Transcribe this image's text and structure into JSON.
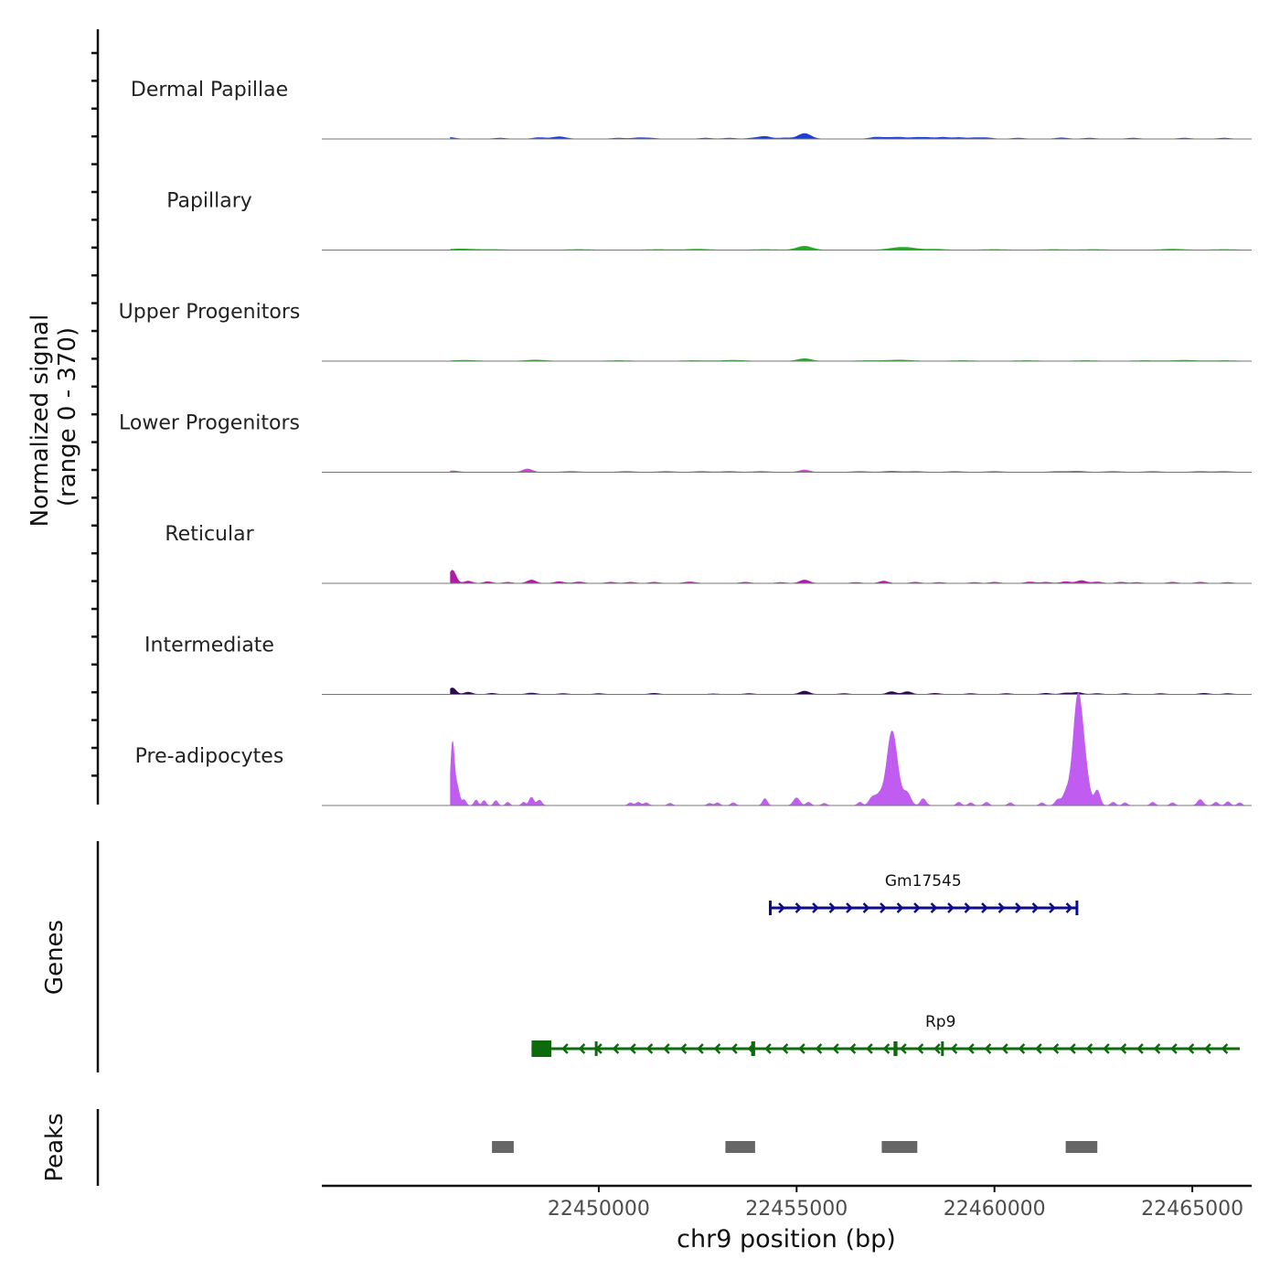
{
  "chart_data": {
    "type": "area",
    "chromosome": "chr9",
    "x_range": [
      22443000,
      22466500
    ],
    "x_ticks": [
      22450000,
      22455000,
      22460000,
      22465000
    ],
    "x_tick_labels": [
      "22450000",
      "22455000",
      "22460000",
      "22465000"
    ],
    "xlabel": "chr9 position (bp)",
    "ylabel_line1": "Normalized signal",
    "ylabel_line2": "(range 0 - 370)",
    "y_range": [
      0,
      370
    ],
    "tracks": [
      {
        "name": "Dermal Papillae",
        "color": "#1f3fcf",
        "peaks": [
          [
            22446200,
            6,
            150
          ],
          [
            22447500,
            3,
            150
          ],
          [
            22448500,
            5,
            150
          ],
          [
            22449000,
            8,
            170
          ],
          [
            22450500,
            3,
            170
          ],
          [
            22451000,
            4,
            150
          ],
          [
            22451300,
            3,
            150
          ],
          [
            22452700,
            3,
            150
          ],
          [
            22453300,
            3,
            150
          ],
          [
            22453900,
            3,
            150
          ],
          [
            22454200,
            9,
            150
          ],
          [
            22454700,
            4,
            150
          ],
          [
            22455200,
            20,
            160
          ],
          [
            22457000,
            6,
            150
          ],
          [
            22457300,
            4,
            150
          ],
          [
            22457600,
            6,
            150
          ],
          [
            22458000,
            5,
            150
          ],
          [
            22458300,
            5,
            150
          ],
          [
            22458700,
            6,
            150
          ],
          [
            22459100,
            5,
            150
          ],
          [
            22459500,
            4,
            150
          ],
          [
            22459800,
            4,
            150
          ],
          [
            22460600,
            3,
            150
          ],
          [
            22461700,
            4,
            150
          ],
          [
            22462400,
            3,
            150
          ],
          [
            22463500,
            3,
            150
          ],
          [
            22464800,
            3,
            150
          ],
          [
            22465800,
            3,
            150
          ]
        ]
      },
      {
        "name": "Papillary",
        "color": "#22a822",
        "peaks": [
          [
            22446500,
            4,
            300
          ],
          [
            22447300,
            2,
            300
          ],
          [
            22449500,
            2,
            300
          ],
          [
            22451500,
            2,
            300
          ],
          [
            22452500,
            3,
            300
          ],
          [
            22454200,
            2,
            300
          ],
          [
            22455200,
            14,
            190
          ],
          [
            22457500,
            5,
            250
          ],
          [
            22457800,
            7,
            250
          ],
          [
            22458500,
            3,
            250
          ],
          [
            22460000,
            2,
            300
          ],
          [
            22461500,
            2,
            300
          ],
          [
            22462500,
            2,
            300
          ],
          [
            22464500,
            3,
            300
          ],
          [
            22465800,
            2,
            300
          ]
        ]
      },
      {
        "name": "Upper Progenitors",
        "color": "#2aa82a",
        "peaks": [
          [
            22446600,
            3,
            300
          ],
          [
            22448400,
            4,
            250
          ],
          [
            22450500,
            2,
            300
          ],
          [
            22452400,
            2,
            300
          ],
          [
            22453400,
            3,
            300
          ],
          [
            22455200,
            9,
            170
          ],
          [
            22456800,
            2,
            300
          ],
          [
            22457600,
            4,
            300
          ],
          [
            22459200,
            2,
            300
          ],
          [
            22460800,
            2,
            300
          ],
          [
            22462300,
            2,
            300
          ],
          [
            22463800,
            2,
            300
          ],
          [
            22464800,
            3,
            300
          ],
          [
            22465800,
            2,
            300
          ]
        ]
      },
      {
        "name": "Lower Progenitors",
        "color": "#d63fd6",
        "peaks": [
          [
            22446300,
            5,
            150
          ],
          [
            22448200,
            12,
            120
          ],
          [
            22449300,
            3,
            200
          ],
          [
            22450700,
            3,
            200
          ],
          [
            22451700,
            3,
            200
          ],
          [
            22452600,
            3,
            200
          ],
          [
            22453300,
            3,
            200
          ],
          [
            22454100,
            3,
            200
          ],
          [
            22455200,
            8,
            130
          ],
          [
            22456600,
            3,
            200
          ],
          [
            22457400,
            4,
            200
          ],
          [
            22458000,
            3,
            200
          ],
          [
            22459000,
            3,
            200
          ],
          [
            22460000,
            3,
            200
          ],
          [
            22461600,
            3,
            200
          ],
          [
            22462100,
            4,
            200
          ],
          [
            22463000,
            3,
            200
          ],
          [
            22464000,
            3,
            200
          ],
          [
            22465200,
            3,
            200
          ],
          [
            22465800,
            3,
            200
          ]
        ]
      },
      {
        "name": "Reticular",
        "color": "#b01aa8",
        "peaks": [
          [
            22446300,
            48,
            90
          ],
          [
            22446700,
            8,
            100
          ],
          [
            22447200,
            6,
            100
          ],
          [
            22447700,
            4,
            100
          ],
          [
            22448300,
            12,
            110
          ],
          [
            22449000,
            6,
            120
          ],
          [
            22449500,
            5,
            120
          ],
          [
            22450300,
            4,
            120
          ],
          [
            22450800,
            4,
            120
          ],
          [
            22451400,
            4,
            120
          ],
          [
            22452300,
            5,
            140
          ],
          [
            22453700,
            4,
            120
          ],
          [
            22454600,
            3,
            120
          ],
          [
            22455200,
            12,
            120
          ],
          [
            22456500,
            3,
            120
          ],
          [
            22457200,
            8,
            110
          ],
          [
            22458000,
            4,
            120
          ],
          [
            22458600,
            3,
            120
          ],
          [
            22459500,
            3,
            120
          ],
          [
            22460000,
            4,
            120
          ],
          [
            22460900,
            5,
            120
          ],
          [
            22461300,
            4,
            120
          ],
          [
            22461800,
            6,
            120
          ],
          [
            22462200,
            10,
            120
          ],
          [
            22462600,
            5,
            120
          ],
          [
            22463200,
            4,
            120
          ],
          [
            22463600,
            3,
            120
          ],
          [
            22464500,
            4,
            120
          ],
          [
            22465200,
            4,
            120
          ],
          [
            22465900,
            3,
            120
          ]
        ]
      },
      {
        "name": "Intermediate",
        "color": "#2e0a4a",
        "peaks": [
          [
            22446300,
            24,
            90
          ],
          [
            22446700,
            8,
            100
          ],
          [
            22447300,
            4,
            100
          ],
          [
            22448300,
            5,
            120
          ],
          [
            22449100,
            3,
            120
          ],
          [
            22450000,
            3,
            120
          ],
          [
            22451400,
            4,
            120
          ],
          [
            22452900,
            2,
            120
          ],
          [
            22453800,
            3,
            120
          ],
          [
            22455200,
            12,
            120
          ],
          [
            22456200,
            3,
            120
          ],
          [
            22457400,
            10,
            110
          ],
          [
            22457800,
            10,
            110
          ],
          [
            22458500,
            4,
            120
          ],
          [
            22459400,
            3,
            120
          ],
          [
            22460300,
            3,
            120
          ],
          [
            22461300,
            4,
            120
          ],
          [
            22461800,
            5,
            120
          ],
          [
            22462100,
            7,
            120
          ],
          [
            22462600,
            3,
            120
          ],
          [
            22463300,
            3,
            120
          ],
          [
            22464200,
            3,
            120
          ],
          [
            22465300,
            4,
            120
          ],
          [
            22465900,
            3,
            120
          ]
        ]
      },
      {
        "name": "Pre-adipocytes",
        "color": "#c15cf0",
        "peaks": [
          [
            22446300,
            205,
            45
          ],
          [
            22446400,
            80,
            70
          ],
          [
            22446600,
            20,
            50
          ],
          [
            22446900,
            20,
            50
          ],
          [
            22447100,
            18,
            50
          ],
          [
            22447400,
            18,
            50
          ],
          [
            22447700,
            12,
            50
          ],
          [
            22448100,
            12,
            50
          ],
          [
            22448300,
            30,
            60
          ],
          [
            22448500,
            20,
            60
          ],
          [
            22450800,
            10,
            60
          ],
          [
            22451000,
            12,
            60
          ],
          [
            22451200,
            10,
            60
          ],
          [
            22451800,
            8,
            60
          ],
          [
            22452800,
            8,
            60
          ],
          [
            22453000,
            10,
            60
          ],
          [
            22453400,
            10,
            60
          ],
          [
            22454200,
            25,
            60
          ],
          [
            22455000,
            28,
            80
          ],
          [
            22455300,
            12,
            60
          ],
          [
            22455700,
            8,
            60
          ],
          [
            22456600,
            12,
            60
          ],
          [
            22456900,
            22,
            80
          ],
          [
            22457100,
            40,
            120
          ],
          [
            22457400,
            215,
            120
          ],
          [
            22457500,
            70,
            150
          ],
          [
            22457800,
            40,
            90
          ],
          [
            22458200,
            25,
            70
          ],
          [
            22459100,
            12,
            60
          ],
          [
            22459400,
            10,
            60
          ],
          [
            22459800,
            12,
            60
          ],
          [
            22460400,
            10,
            60
          ],
          [
            22461200,
            10,
            60
          ],
          [
            22461600,
            20,
            70
          ],
          [
            22461800,
            25,
            80
          ],
          [
            22462100,
            280,
            105
          ],
          [
            22462250,
            160,
            120
          ],
          [
            22462000,
            70,
            150
          ],
          [
            22462600,
            55,
            70
          ],
          [
            22463000,
            12,
            60
          ],
          [
            22463300,
            10,
            60
          ],
          [
            22464000,
            12,
            60
          ],
          [
            22464500,
            10,
            60
          ],
          [
            22465200,
            22,
            70
          ],
          [
            22465600,
            12,
            60
          ],
          [
            22465900,
            14,
            60
          ],
          [
            22466200,
            10,
            60
          ]
        ]
      }
    ],
    "genes_label": "Genes",
    "genes": [
      {
        "name": "Gm17545",
        "start": 22454300,
        "end": 22462100,
        "strand": "+",
        "color": "#0d0d8c",
        "exons": [
          [
            22454300,
            22454350
          ],
          [
            22462050,
            22462100
          ]
        ]
      },
      {
        "name": "Rp9",
        "start": 22448300,
        "end": 22466200,
        "strand": "-",
        "color": "#0d6b0d",
        "exons": [
          [
            22448300,
            22448800
          ],
          [
            22449900,
            22449950
          ],
          [
            22453850,
            22453950
          ],
          [
            22457450,
            22457550
          ],
          [
            22458650,
            22458700
          ]
        ]
      }
    ],
    "peaks_label": "Peaks",
    "peak_regions": [
      [
        22447300,
        22447850
      ],
      [
        22453200,
        22453950
      ],
      [
        22457150,
        22458050
      ],
      [
        22461800,
        22462600
      ]
    ]
  }
}
